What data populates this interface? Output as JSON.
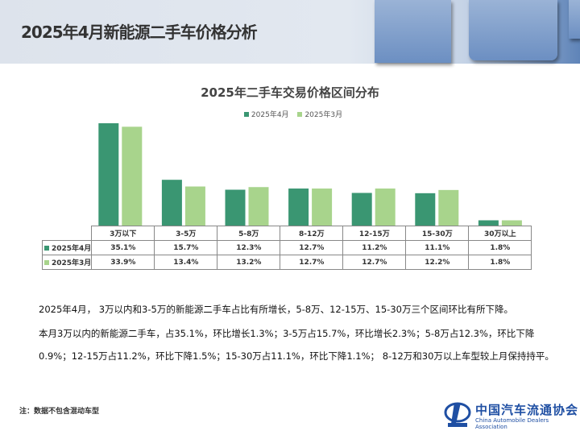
{
  "page_title": "2025年4月新能源二手车价格分析",
  "chart_data": {
    "type": "bar",
    "title": "2025年二手车交易价格区间分布",
    "categories": [
      "3万以下",
      "3-5万",
      "5-8万",
      "8-12万",
      "12-15万",
      "15-30万",
      "30万以上"
    ],
    "series": [
      {
        "name": "2025年4月",
        "color": "#3a9672",
        "values": [
          35.1,
          15.7,
          12.3,
          12.7,
          11.2,
          11.1,
          1.8
        ],
        "labels": [
          "35.1%",
          "15.7%",
          "12.3%",
          "12.7%",
          "11.2%",
          "11.1%",
          "1.8%"
        ]
      },
      {
        "name": "2025年3月",
        "color": "#a8d48c",
        "values": [
          33.9,
          13.4,
          13.2,
          12.7,
          12.7,
          12.2,
          1.8
        ],
        "labels": [
          "33.9%",
          "13.4%",
          "13.2%",
          "12.7%",
          "12.7%",
          "12.2%",
          "1.8%"
        ]
      }
    ],
    "ylim": [
      0,
      40
    ],
    "legend": "top",
    "grid": false
  },
  "text": {
    "line1": "2025年4月， 3万以内和3-5万的新能源二手车占比有所增长，5-8万、12-15万、15-30万三个区间环比有所下降。",
    "line2": "本月3万以内的新能源二手车，占35.1%，环比增长1.3%；3-5万占15.7%，环比增长2.3%；5-8万占12.3%，环比下降",
    "line3": "0.9%；12-15万占11.2%，环比下降1.5%；15-30万占11.1%，环比下降1.1%； 8-12万和30万以上车型较上月保持持平。"
  },
  "note": "注：数据不包含混动车型",
  "logo": {
    "cn": "中国汽车流通协会",
    "en": "China Automobile Dealers Association"
  }
}
